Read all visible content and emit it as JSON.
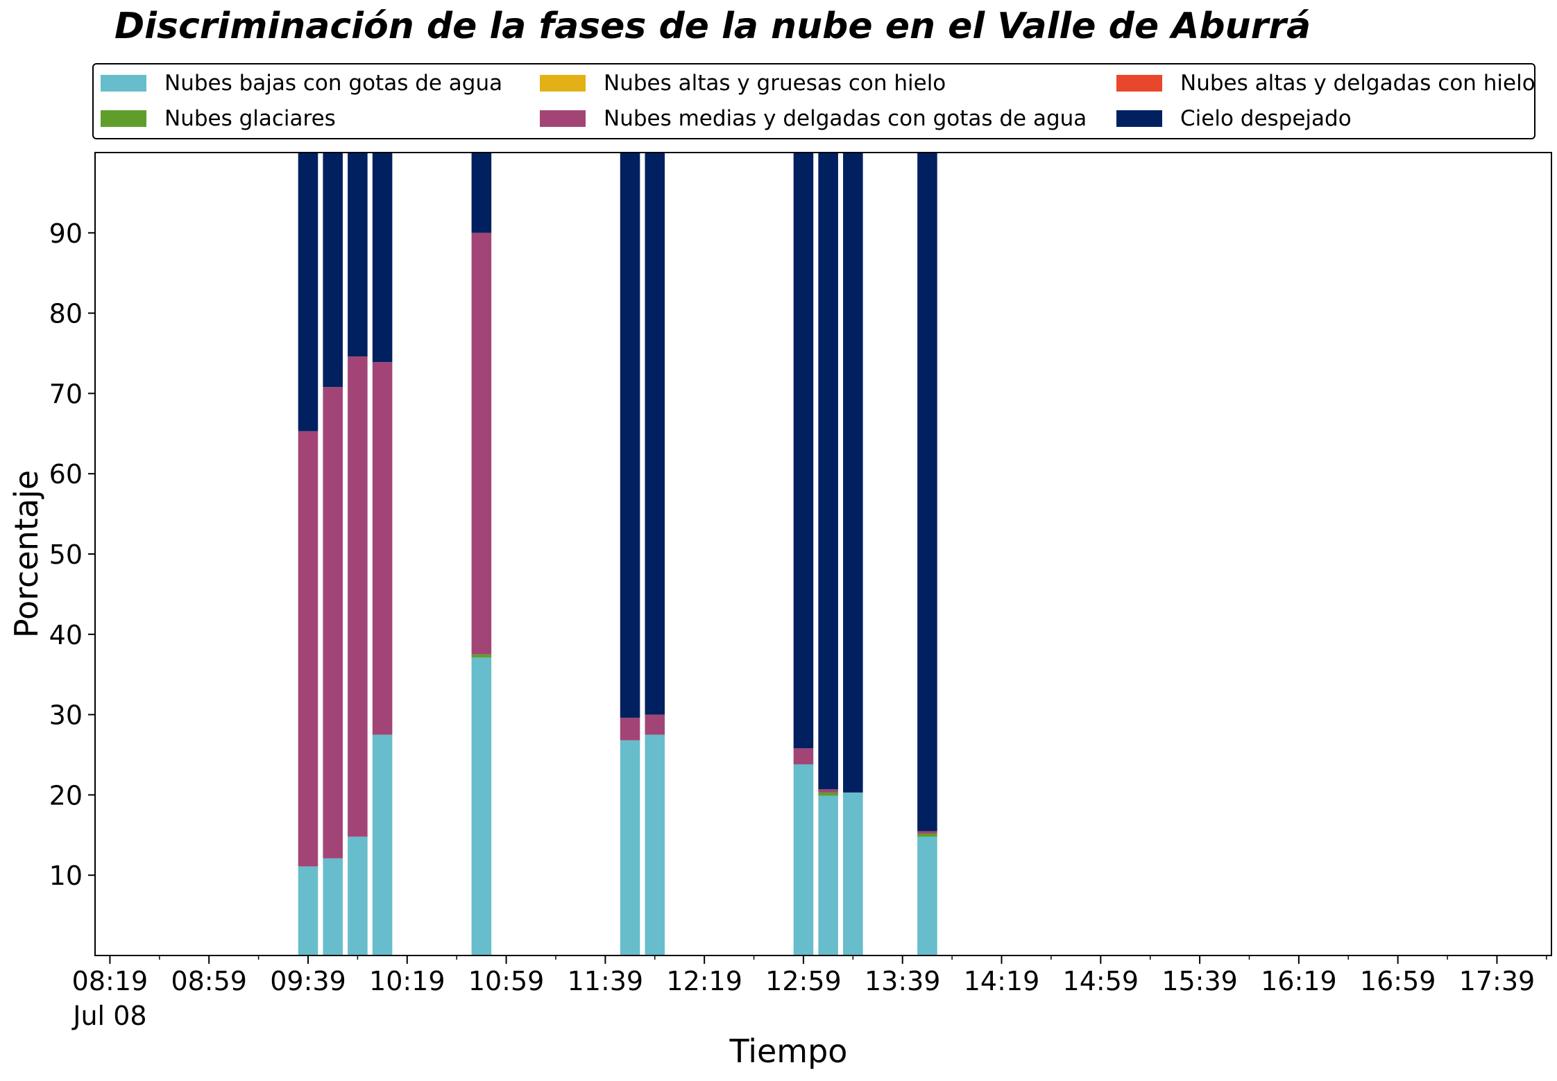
{
  "chart_data": {
    "type": "bar",
    "stacked": true,
    "title": "Discriminación de la fases de la nube en el Valle de Aburrá",
    "xlabel": "Tiempo",
    "ylabel": "Porcentaje",
    "ylim": [
      0,
      100
    ],
    "yticks": [
      10,
      20,
      30,
      40,
      50,
      60,
      70,
      80,
      90
    ],
    "x_range": [
      "08:13",
      "18:01"
    ],
    "bar_width_minutes": 8,
    "xtick_labels": [
      "08:19",
      "08:59",
      "09:39",
      "10:19",
      "10:59",
      "11:39",
      "12:19",
      "12:59",
      "13:39",
      "14:19",
      "14:59",
      "15:39",
      "16:19",
      "16:59",
      "17:39"
    ],
    "xtick_sublabel": "Jul 08",
    "minor_ticks_every_minutes": 20,
    "grid": false,
    "legend_position": "top",
    "x": [
      "09:39",
      "09:49",
      "09:59",
      "10:09",
      "10:49",
      "11:49",
      "11:59",
      "12:59",
      "13:09",
      "13:19",
      "13:49"
    ],
    "series": [
      {
        "name": "Nubes bajas con gotas de agua",
        "color": "#67BDCB",
        "values": [
          11.1,
          12.1,
          14.8,
          27.5,
          37.1,
          26.8,
          27.5,
          23.8,
          19.9,
          20.3,
          14.8
        ]
      },
      {
        "name": "Nubes glaciares",
        "color": "#5F9E2B",
        "values": [
          0,
          0,
          0,
          0,
          0.4,
          0,
          0,
          0,
          0.4,
          0,
          0.4
        ]
      },
      {
        "name": "Nubes altas y gruesas con hielo",
        "color": "#E3B116",
        "values": [
          0,
          0,
          0,
          0,
          0,
          0,
          0,
          0,
          0,
          0,
          0
        ]
      },
      {
        "name": "Nubes medias y delgadas con gotas de agua",
        "color": "#A24576",
        "values": [
          54.2,
          58.7,
          59.8,
          46.4,
          52.5,
          2.8,
          2.5,
          2.0,
          0.4,
          0,
          0.3
        ]
      },
      {
        "name": "Nubes altas y delgadas con hielo",
        "color": "#E8472C",
        "values": [
          0,
          0,
          0,
          0,
          0,
          0,
          0,
          0,
          0,
          0,
          0
        ]
      },
      {
        "name": "Cielo despejado",
        "color": "#002060",
        "values": [
          34.7,
          29.2,
          25.4,
          26.1,
          10.0,
          70.4,
          70.0,
          74.2,
          79.3,
          79.7,
          84.5
        ]
      }
    ]
  },
  "legend_layout": [
    [
      0,
      1
    ],
    [
      2,
      3
    ],
    [
      4,
      5
    ]
  ]
}
